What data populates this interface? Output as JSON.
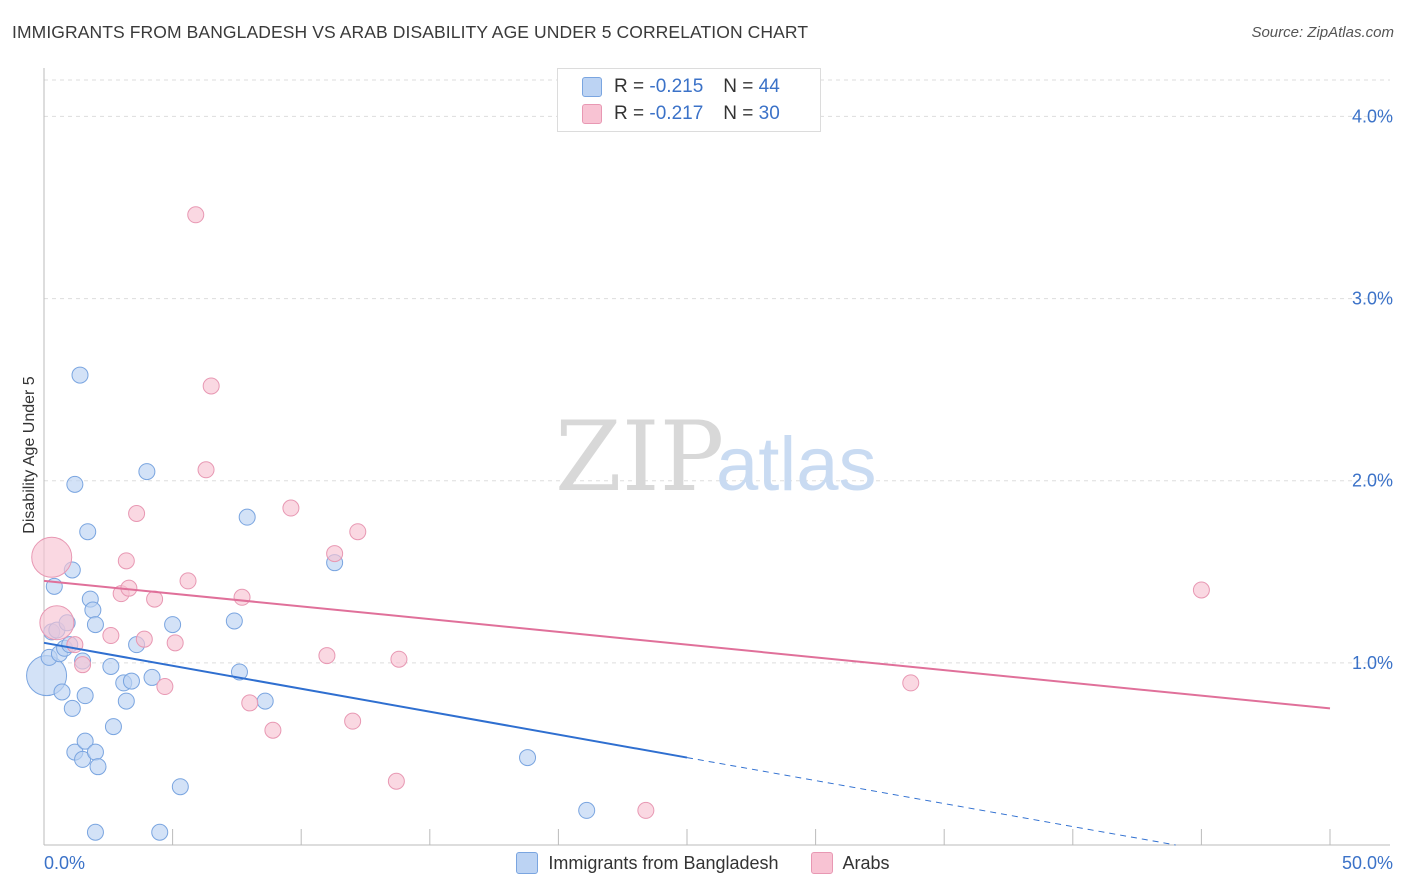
{
  "header": {
    "title": "IMMIGRANTS FROM BANGLADESH VS ARAB DISABILITY AGE UNDER 5 CORRELATION CHART",
    "source": "Source: ZipAtlas.com"
  },
  "watermark": {
    "zip": "ZIP",
    "atlas": "atlas"
  },
  "legend_top": [
    {
      "r_label": "R = ",
      "r_value": "-0.215",
      "n_label": "N = ",
      "n_value": "44"
    },
    {
      "r_label": "R = ",
      "r_value": "-0.217",
      "n_label": "N = ",
      "n_value": "30"
    }
  ],
  "chart_data": {
    "type": "scatter",
    "title": "IMMIGRANTS FROM BANGLADESH VS ARAB DISABILITY AGE UNDER 5 CORRELATION CHART",
    "xlabel": "",
    "ylabel": "Disability Age Under 5",
    "xlim": [
      0,
      50
    ],
    "ylim": [
      0,
      4.2
    ],
    "x_tick_labels": [
      "0.0%",
      "50.0%"
    ],
    "y_ticks": [
      1.0,
      2.0,
      3.0,
      4.0
    ],
    "y_tick_labels": [
      "1.0%",
      "2.0%",
      "3.0%",
      "4.0%"
    ],
    "grid": true,
    "legend_position": "top-center",
    "colors": {
      "bangladesh_fill": "#bcd3f3",
      "bangladesh_stroke": "#7aa5e0",
      "bangladesh_line": "#2f6fd0",
      "arabs_fill": "#f8c3d3",
      "arabs_stroke": "#e898b3",
      "arabs_line": "#e0709a",
      "tick_label": "#3b72c8",
      "grid": "#dddddd"
    },
    "series": [
      {
        "name": "Immigrants from Bangladesh",
        "points": [
          [
            0.1,
            0.93
          ],
          [
            0.2,
            1.03
          ],
          [
            0.3,
            1.17
          ],
          [
            0.4,
            1.42
          ],
          [
            0.5,
            1.18
          ],
          [
            0.6,
            1.05
          ],
          [
            0.8,
            1.08
          ],
          [
            0.9,
            1.22
          ],
          [
            1.0,
            1.1
          ],
          [
            1.1,
            1.51
          ],
          [
            1.2,
            1.98
          ],
          [
            1.4,
            2.58
          ],
          [
            1.5,
            1.01
          ],
          [
            1.6,
            0.82
          ],
          [
            1.7,
            1.72
          ],
          [
            1.8,
            1.35
          ],
          [
            1.9,
            1.29
          ],
          [
            2.0,
            1.21
          ],
          [
            0.7,
            0.84
          ],
          [
            1.1,
            0.75
          ],
          [
            1.2,
            0.51
          ],
          [
            1.5,
            0.47
          ],
          [
            1.6,
            0.57
          ],
          [
            2.0,
            0.51
          ],
          [
            2.1,
            0.43
          ],
          [
            2.6,
            0.98
          ],
          [
            2.7,
            0.65
          ],
          [
            3.1,
            0.89
          ],
          [
            3.2,
            0.79
          ],
          [
            3.4,
            0.9
          ],
          [
            3.6,
            1.1
          ],
          [
            4.0,
            2.05
          ],
          [
            4.2,
            0.92
          ],
          [
            5.0,
            1.21
          ],
          [
            5.3,
            0.32
          ],
          [
            4.5,
            0.07
          ],
          [
            2.0,
            0.07
          ],
          [
            7.4,
            1.23
          ],
          [
            7.6,
            0.95
          ],
          [
            7.9,
            1.8
          ],
          [
            8.6,
            0.79
          ],
          [
            11.3,
            1.55
          ],
          [
            18.8,
            0.48
          ],
          [
            21.1,
            0.19
          ]
        ],
        "trend": {
          "x": [
            0,
            25
          ],
          "y": [
            1.11,
            0.48
          ],
          "dashed_to": [
            44,
            0.0
          ]
        }
      },
      {
        "name": "Arabs",
        "points": [
          [
            0.3,
            1.58
          ],
          [
            0.5,
            1.22
          ],
          [
            1.2,
            1.1
          ],
          [
            1.5,
            0.99
          ],
          [
            2.6,
            1.15
          ],
          [
            3.0,
            1.38
          ],
          [
            3.3,
            1.41
          ],
          [
            3.2,
            1.56
          ],
          [
            3.6,
            1.82
          ],
          [
            3.9,
            1.13
          ],
          [
            4.3,
            1.35
          ],
          [
            4.7,
            0.87
          ],
          [
            5.1,
            1.11
          ],
          [
            5.6,
            1.45
          ],
          [
            5.9,
            3.46
          ],
          [
            6.3,
            2.06
          ],
          [
            6.5,
            2.52
          ],
          [
            7.7,
            1.36
          ],
          [
            8.0,
            0.78
          ],
          [
            8.9,
            0.63
          ],
          [
            9.6,
            1.85
          ],
          [
            11.0,
            1.04
          ],
          [
            11.3,
            1.6
          ],
          [
            12.0,
            0.68
          ],
          [
            12.2,
            1.72
          ],
          [
            13.7,
            0.35
          ],
          [
            13.8,
            1.02
          ],
          [
            23.4,
            0.19
          ],
          [
            33.7,
            0.89
          ],
          [
            45.0,
            1.4
          ]
        ],
        "trend": {
          "x": [
            0,
            50
          ],
          "y": [
            1.45,
            0.75
          ]
        }
      }
    ]
  },
  "legend_bottom": [
    {
      "label": "Immigrants from Bangladesh"
    },
    {
      "label": "Arabs"
    }
  ]
}
